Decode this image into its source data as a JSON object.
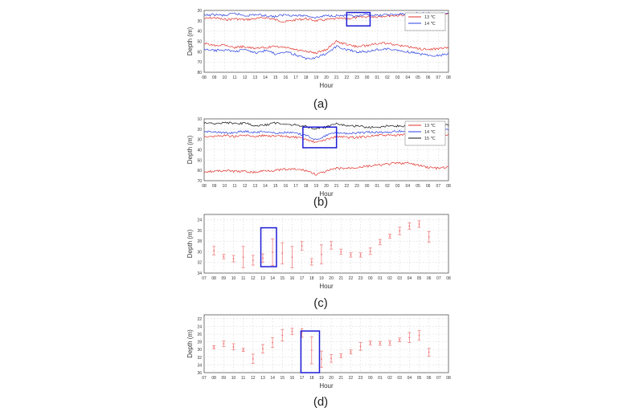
{
  "figure": {
    "panel_labels": [
      "(a)",
      "(b)",
      "(c)",
      "(d)"
    ]
  },
  "colors": {
    "13": "#e0302a",
    "14": "#2a3fe0",
    "15": "#111111",
    "errorbar": "#f08080",
    "highlight": "#1c1cd6",
    "grid": "#d8d8d8"
  },
  "chart_data": [
    {
      "type": "line",
      "panel": "(a)",
      "xlabel": "Hour",
      "ylabel": "Depth (m)",
      "x_ticks": [
        "08",
        "09",
        "10",
        "11",
        "12",
        "13",
        "14",
        "15",
        "16",
        "17",
        "18",
        "19",
        "20",
        "21",
        "22",
        "23",
        "00",
        "01",
        "02",
        "03",
        "04",
        "05",
        "06",
        "07",
        "08"
      ],
      "y_ticks": [
        20,
        30,
        40,
        50,
        60,
        70,
        80
      ],
      "ylim": [
        20,
        80
      ],
      "y_inverted": true,
      "legend": {
        "placement": "top-right",
        "entries": [
          "13 ℃",
          "14 ℃"
        ]
      },
      "highlight_box": {
        "x": [
          14,
          16.3
        ],
        "y": [
          22,
          35
        ]
      },
      "series": [
        {
          "name": "13 ℃",
          "color_key": "13",
          "x": [
            0,
            1,
            2,
            3,
            4,
            5,
            6,
            7,
            8,
            9,
            10,
            11,
            12,
            13,
            14,
            15,
            16,
            17,
            18,
            19,
            20,
            21,
            22,
            23,
            24
          ],
          "lines": [
            [
              28,
              27,
              29,
              28,
              29,
              28,
              27,
              29,
              31,
              29,
              28,
              30,
              29,
              28,
              28,
              27,
              26,
              26,
              25,
              25,
              24,
              24,
              24,
              24,
              24
            ],
            [
              52,
              54,
              53,
              56,
              55,
              57,
              56,
              55,
              56,
              58,
              60,
              61,
              58,
              50,
              53,
              55,
              54,
              52,
              52,
              54,
              55,
              57,
              58,
              57,
              56
            ]
          ]
        },
        {
          "name": "14 ℃",
          "color_key": "14",
          "x": [
            0,
            1,
            2,
            3,
            4,
            5,
            6,
            7,
            8,
            9,
            10,
            11,
            12,
            13,
            14,
            15,
            16,
            17,
            18,
            19,
            20,
            21,
            22,
            23,
            24
          ],
          "lines": [
            [
              25,
              24,
              25,
              23,
              25,
              24,
              25,
              26,
              24,
              25,
              25,
              27,
              25,
              25,
              25,
              26,
              24,
              25,
              24,
              24,
              23,
              23,
              23,
              23,
              23
            ],
            [
              58,
              59,
              58,
              60,
              58,
              61,
              59,
              62,
              60,
              63,
              67,
              66,
              62,
              55,
              58,
              60,
              60,
              58,
              57,
              59,
              60,
              62,
              63,
              64,
              62
            ]
          ]
        }
      ]
    },
    {
      "type": "line",
      "panel": "(b)",
      "xlabel": "Hour",
      "ylabel": "Depth (m)",
      "x_ticks": [
        "08",
        "09",
        "10",
        "11",
        "12",
        "13",
        "14",
        "15",
        "16",
        "17",
        "18",
        "19",
        "20",
        "21",
        "22",
        "23",
        "00",
        "01",
        "02",
        "03",
        "04",
        "05",
        "06",
        "07",
        "08"
      ],
      "y_ticks": [
        10,
        20,
        30,
        40,
        50,
        60,
        70
      ],
      "ylim": [
        10,
        70
      ],
      "y_inverted": true,
      "legend": {
        "placement": "top-right",
        "entries": [
          "13 ℃",
          "14 ℃",
          "15 ℃"
        ]
      },
      "highlight_box": {
        "x": [
          9.7,
          13
        ],
        "y": [
          18,
          38
        ]
      },
      "series": [
        {
          "name": "13 ℃",
          "color_key": "13",
          "x": [
            0,
            1,
            2,
            3,
            4,
            5,
            6,
            7,
            8,
            9,
            10,
            11,
            12,
            13,
            14,
            15,
            16,
            17,
            18,
            19,
            20,
            21,
            22,
            23,
            24
          ],
          "lines": [
            [
              27,
              27,
              26,
              27,
              26,
              27,
              26,
              27,
              27,
              28,
              30,
              33,
              30,
              27,
              28,
              28,
              27,
              26,
              26,
              26,
              25,
              25,
              25,
              25,
              25
            ],
            [
              61,
              61,
              60,
              61,
              61,
              62,
              60,
              60,
              59,
              59,
              60,
              64,
              61,
              58,
              58,
              57,
              56,
              55,
              54,
              53,
              53,
              55,
              57,
              58,
              57
            ]
          ]
        },
        {
          "name": "14 ℃",
          "color_key": "14",
          "x": [
            0,
            1,
            2,
            3,
            4,
            5,
            6,
            7,
            8,
            9,
            10,
            11,
            12,
            13,
            14,
            15,
            16,
            17,
            18,
            19,
            20,
            21,
            22,
            23,
            24
          ],
          "lines": [
            [
              23,
              22,
              24,
              23,
              22,
              23,
              22,
              24,
              23,
              24,
              26,
              30,
              26,
              23,
              24,
              24,
              23,
              23,
              23,
              22,
              22,
              21,
              21,
              21,
              21
            ]
          ]
        },
        {
          "name": "15 ℃",
          "color_key": "15",
          "x": [
            0,
            1,
            2,
            3,
            4,
            5,
            6,
            7,
            8,
            9,
            10,
            11,
            12,
            13,
            14,
            15,
            16,
            17,
            18,
            19,
            20,
            21,
            22,
            23,
            24
          ],
          "lines": [
            [
              14,
              15,
              13,
              15,
              14,
              17,
              16,
              14,
              15,
              16,
              17,
              20,
              18,
              15,
              17,
              17,
              18,
              18,
              17,
              17,
              17,
              16,
              16,
              16,
              16
            ]
          ]
        }
      ]
    },
    {
      "type": "errorbar",
      "panel": "(c)",
      "xlabel": "Hour",
      "ylabel": "Depth (m)",
      "x_ticks": [
        "07",
        "08",
        "09",
        "10",
        "11",
        "12",
        "13",
        "14",
        "15",
        "16",
        "17",
        "18",
        "19",
        "20",
        "21",
        "22",
        "23",
        "00",
        "01",
        "02",
        "03",
        "04",
        "05",
        "06",
        "07",
        "08"
      ],
      "y_ticks": [
        24,
        26,
        28,
        30,
        32,
        34
      ],
      "ylim": [
        23,
        34
      ],
      "y_inverted": true,
      "highlight_box": {
        "x": [
          5.8,
          7.4
        ],
        "y": [
          25.5,
          32.8
        ]
      },
      "points": [
        {
          "x": 1,
          "y": 29.8,
          "err": 0.8
        },
        {
          "x": 2,
          "y": 30.9,
          "err": 0.4
        },
        {
          "x": 3,
          "y": 31.3,
          "err": 0.6
        },
        {
          "x": 4,
          "y": 31.0,
          "err": 2.0
        },
        {
          "x": 5,
          "y": 31.6,
          "err": 0.9
        },
        {
          "x": 6,
          "y": 31.2,
          "err": 0.8
        },
        {
          "x": 7,
          "y": 30.1,
          "err": 2.5
        },
        {
          "x": 8,
          "y": 30.3,
          "err": 2.0
        },
        {
          "x": 9,
          "y": 31.0,
          "err": 2.0
        },
        {
          "x": 10,
          "y": 28.9,
          "err": 0.8
        },
        {
          "x": 11,
          "y": 31.9,
          "err": 0.6
        },
        {
          "x": 12,
          "y": 30.5,
          "err": 1.8
        },
        {
          "x": 13,
          "y": 28.8,
          "err": 0.7
        },
        {
          "x": 14,
          "y": 30.0,
          "err": 0.5
        },
        {
          "x": 15,
          "y": 30.6,
          "err": 0.4
        },
        {
          "x": 16,
          "y": 30.6,
          "err": 0.4
        },
        {
          "x": 17,
          "y": 29.9,
          "err": 0.6
        },
        {
          "x": 18,
          "y": 28.2,
          "err": 0.5
        },
        {
          "x": 19,
          "y": 27.1,
          "err": 0.4
        },
        {
          "x": 20,
          "y": 26.1,
          "err": 0.7
        },
        {
          "x": 21,
          "y": 25.2,
          "err": 0.6
        },
        {
          "x": 22,
          "y": 24.8,
          "err": 0.6
        },
        {
          "x": 23,
          "y": 27.2,
          "err": 1.0
        }
      ]
    },
    {
      "type": "errorbar",
      "panel": "(d)",
      "xlabel": "Hour",
      "ylabel": "Depth (m)",
      "x_ticks": [
        "07",
        "08",
        "09",
        "10",
        "11",
        "12",
        "13",
        "14",
        "15",
        "16",
        "17",
        "18",
        "19",
        "20",
        "21",
        "22",
        "23",
        "00",
        "01",
        "02",
        "03",
        "04",
        "05",
        "06",
        "07",
        "08"
      ],
      "y_ticks": [
        22,
        24,
        26,
        28,
        30,
        32,
        34,
        36
      ],
      "ylim": [
        21,
        36
      ],
      "y_inverted": true,
      "highlight_box": {
        "x": [
          9.9,
          11.8
        ],
        "y": [
          25.2,
          36
        ]
      },
      "points": [
        {
          "x": 1,
          "y": 29.4,
          "err": 0.4
        },
        {
          "x": 2,
          "y": 28.5,
          "err": 0.7
        },
        {
          "x": 3,
          "y": 29.3,
          "err": 0.8
        },
        {
          "x": 4,
          "y": 30.1,
          "err": 0.4
        },
        {
          "x": 5,
          "y": 32.4,
          "err": 1.2
        },
        {
          "x": 6,
          "y": 29.8,
          "err": 1.1
        },
        {
          "x": 7,
          "y": 28.2,
          "err": 1.3
        },
        {
          "x": 8,
          "y": 26.3,
          "err": 1.5
        },
        {
          "x": 9,
          "y": 25.3,
          "err": 0.8
        },
        {
          "x": 10,
          "y": 25.7,
          "err": 1.1
        },
        {
          "x": 11,
          "y": 30.2,
          "err": 3.5
        },
        {
          "x": 12,
          "y": 32.5,
          "err": 2.1
        },
        {
          "x": 13,
          "y": 32.3,
          "err": 1.0
        },
        {
          "x": 14,
          "y": 31.6,
          "err": 0.5
        },
        {
          "x": 15,
          "y": 30.6,
          "err": 0.5
        },
        {
          "x": 16,
          "y": 29.2,
          "err": 1.0
        },
        {
          "x": 17,
          "y": 28.3,
          "err": 0.5
        },
        {
          "x": 18,
          "y": 28.4,
          "err": 0.5
        },
        {
          "x": 19,
          "y": 28.3,
          "err": 0.6
        },
        {
          "x": 20,
          "y": 27.5,
          "err": 0.5
        },
        {
          "x": 21,
          "y": 26.9,
          "err": 1.3
        },
        {
          "x": 22,
          "y": 26.3,
          "err": 1.2
        },
        {
          "x": 23,
          "y": 30.7,
          "err": 1.0
        }
      ]
    }
  ]
}
